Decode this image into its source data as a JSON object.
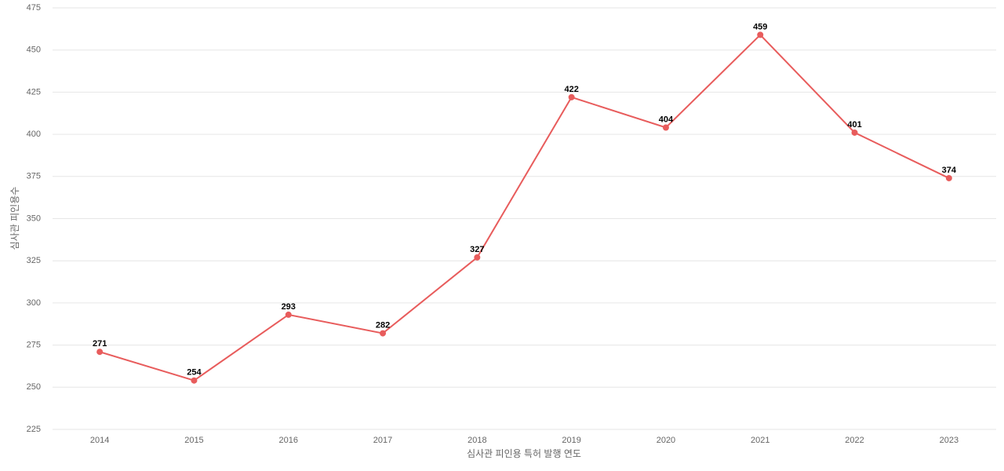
{
  "chart_data": {
    "type": "line",
    "x_label": "심사관 피인용 특허 발행 연도",
    "y_label": "심사관 피인용수",
    "categories": [
      "2014",
      "2015",
      "2016",
      "2017",
      "2018",
      "2019",
      "2020",
      "2021",
      "2022",
      "2023"
    ],
    "values": [
      271,
      254,
      293,
      282,
      327,
      422,
      404,
      459,
      401,
      374
    ],
    "color": "#e85c5c",
    "ylim": [
      225,
      475
    ],
    "yticks": [
      225,
      250,
      275,
      300,
      325,
      350,
      375,
      400,
      425,
      450,
      475
    ],
    "grid": true
  }
}
